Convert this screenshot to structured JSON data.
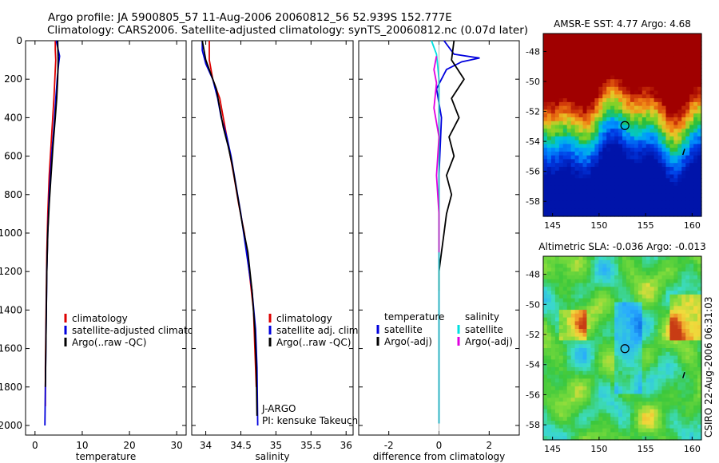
{
  "header": {
    "line1": "Argo profile: JA 5900805_57 11-Aug-2006 20060812_56 52.939S 152.777E",
    "line2": "Climatology: CARS2006. Satellite-adjusted climatology: synTS_20060812.nc (0.07d later)"
  },
  "stamp": "CSIRO 22-Aug-2006 06:31:03",
  "colors": {
    "climatology": "#dd0000",
    "satellite": "#0000dd",
    "argo": "#000000",
    "sal_satellite": "#00e0e0",
    "sal_argo": "#e000e0"
  },
  "chart_data": [
    {
      "id": "temperature",
      "type": "line",
      "xlabel": "temperature",
      "ylabel": "",
      "xlim": [
        -2,
        32
      ],
      "ylim": [
        2050,
        0
      ],
      "xticks": [
        0,
        10,
        20,
        30
      ],
      "yticks": [
        0,
        200,
        400,
        600,
        800,
        1000,
        1200,
        1400,
        1600,
        1800,
        2000
      ],
      "series": [
        {
          "name": "climatology",
          "color": "#dd0000",
          "x": [
            4.3,
            4.3,
            4.4,
            4.3,
            4.0,
            3.5,
            3.0,
            2.7,
            2.5,
            2.4,
            2.3,
            2.2,
            2.2
          ],
          "y": [
            0,
            50,
            100,
            150,
            300,
            500,
            700,
            900,
            1100,
            1300,
            1500,
            1700,
            1900
          ]
        },
        {
          "name": "satellite-adjusted climatology",
          "color": "#0000dd",
          "x": [
            4.5,
            5.2,
            5.0,
            4.7,
            4.4,
            4.0,
            3.5,
            3.0,
            2.7,
            2.5,
            2.4,
            2.3,
            2.2,
            2.1
          ],
          "y": [
            0,
            80,
            120,
            200,
            300,
            450,
            600,
            800,
            1000,
            1200,
            1400,
            1600,
            1800,
            2000
          ]
        },
        {
          "name": "Argo(..raw -QC)",
          "color": "#000000",
          "x": [
            4.8,
            4.9,
            4.8,
            4.6,
            4.3,
            3.8,
            3.4,
            3.0,
            2.7,
            2.5,
            2.4,
            2.3,
            2.2
          ],
          "y": [
            0,
            100,
            200,
            300,
            400,
            550,
            700,
            850,
            1000,
            1200,
            1400,
            1600,
            1800
          ]
        }
      ],
      "legend": [
        "climatology",
        "satellite-adjusted climatology",
        "Argo(..raw -QC)"
      ]
    },
    {
      "id": "salinity",
      "type": "line",
      "xlabel": "salinity",
      "ylabel": "",
      "xlim": [
        33.8,
        36.1
      ],
      "ylim": [
        2050,
        0
      ],
      "xticks": [
        34,
        34.5,
        35,
        35.5,
        36
      ],
      "xticklabels": [
        "34",
        "34.5",
        "35",
        "35.5",
        "36"
      ],
      "series": [
        {
          "name": "climatology",
          "color": "#dd0000",
          "x": [
            34.05,
            34.05,
            34.1,
            34.2,
            34.25,
            34.3,
            34.35,
            34.4,
            34.47,
            34.55,
            34.62,
            34.68,
            34.7,
            34.72
          ],
          "y": [
            0,
            100,
            200,
            300,
            400,
            500,
            600,
            700,
            850,
            1000,
            1200,
            1400,
            1600,
            1800
          ]
        },
        {
          "name": "satellite adj. clim.",
          "color": "#0000dd",
          "x": [
            33.95,
            33.95,
            34.0,
            34.1,
            34.17,
            34.22,
            34.3,
            34.36,
            34.43,
            34.5,
            34.58,
            34.66,
            34.71,
            34.73,
            34.74
          ],
          "y": [
            0,
            50,
            120,
            200,
            300,
            400,
            500,
            600,
            750,
            900,
            1100,
            1300,
            1500,
            1700,
            2000
          ]
        },
        {
          "name": "Argo(..raw -QC)",
          "color": "#000000",
          "x": [
            33.95,
            34.0,
            34.08,
            34.15,
            34.2,
            34.25,
            34.32,
            34.38,
            34.45,
            34.52,
            34.6,
            34.66,
            34.7,
            34.72,
            34.73
          ],
          "y": [
            0,
            100,
            180,
            250,
            350,
            450,
            550,
            650,
            800,
            950,
            1100,
            1300,
            1500,
            1700,
            1950
          ]
        }
      ],
      "legend": [
        "climatology",
        "satellite adj. clim.",
        "Argo(..raw -QC)"
      ],
      "annotations": [
        "J-ARGO",
        "PI: kensuke Takeuchi"
      ]
    },
    {
      "id": "difference",
      "type": "line",
      "xlabel": "difference from climatology",
      "ylabel": "",
      "xlim": [
        -3.2,
        3.2
      ],
      "ylim": [
        2050,
        0
      ],
      "xticks": [
        -2,
        0,
        2
      ],
      "series": [
        {
          "name": "temperature satellite",
          "color": "#0000dd",
          "x": [
            0.2,
            0.6,
            1.6,
            0.9,
            0.3,
            -0.1,
            0.1,
            0.0,
            0.0,
            0.0,
            0.0,
            0.0
          ],
          "y": [
            0,
            70,
            90,
            110,
            150,
            250,
            400,
            700,
            1000,
            1400,
            1700,
            1990
          ]
        },
        {
          "name": "temperature Argo(-adj)",
          "color": "#000000",
          "x": [
            0.6,
            0.5,
            1.0,
            0.5,
            0.8,
            0.4,
            0.6,
            0.3,
            0.5,
            0.3,
            0.2,
            0.1,
            0.0,
            0.0
          ],
          "y": [
            0,
            100,
            200,
            300,
            400,
            500,
            600,
            700,
            800,
            900,
            1000,
            1100,
            1200,
            1300
          ]
        },
        {
          "name": "salinity satellite",
          "color": "#00e0e0",
          "x": [
            -0.3,
            -0.1,
            0.0,
            0.0,
            0.0,
            0.0,
            0.0,
            0.0
          ],
          "y": [
            0,
            70,
            200,
            400,
            800,
            1200,
            1600,
            1990
          ]
        },
        {
          "name": "salinity Argo(-adj)",
          "color": "#e000e0",
          "x": [
            -0.1,
            -0.2,
            -0.1,
            -0.2,
            0.0,
            -0.1,
            0.0,
            0.0
          ],
          "y": [
            80,
            150,
            220,
            350,
            500,
            700,
            900,
            1100
          ]
        }
      ],
      "legend_left_title": "temperature",
      "legend_right_title": "salinity",
      "legend_left": [
        "satellite",
        "Argo(-adj)"
      ],
      "legend_right": [
        "satellite",
        "Argo(-adj)"
      ]
    },
    {
      "id": "sst-map",
      "type": "heatmap",
      "title": "AMSR-E SST: 4.77 Argo: 4.68",
      "xlim": [
        144,
        161
      ],
      "ylim": [
        -59,
        -46.8
      ],
      "xticks": [
        145,
        150,
        155,
        160
      ],
      "yticks": [
        -48,
        -50,
        -52,
        -54,
        -56,
        -58
      ],
      "marker": {
        "lon": 152.777,
        "lat": -52.939
      }
    },
    {
      "id": "sla-map",
      "type": "heatmap",
      "title": "Altimetric SLA: -0.036 Argo: -0.013",
      "xlim": [
        144,
        161
      ],
      "ylim": [
        -59,
        -46.8
      ],
      "xticks": [
        145,
        150,
        155,
        160
      ],
      "yticks": [
        -48,
        -50,
        -52,
        -54,
        -56,
        -58
      ],
      "marker": {
        "lon": 152.777,
        "lat": -52.939
      }
    }
  ]
}
